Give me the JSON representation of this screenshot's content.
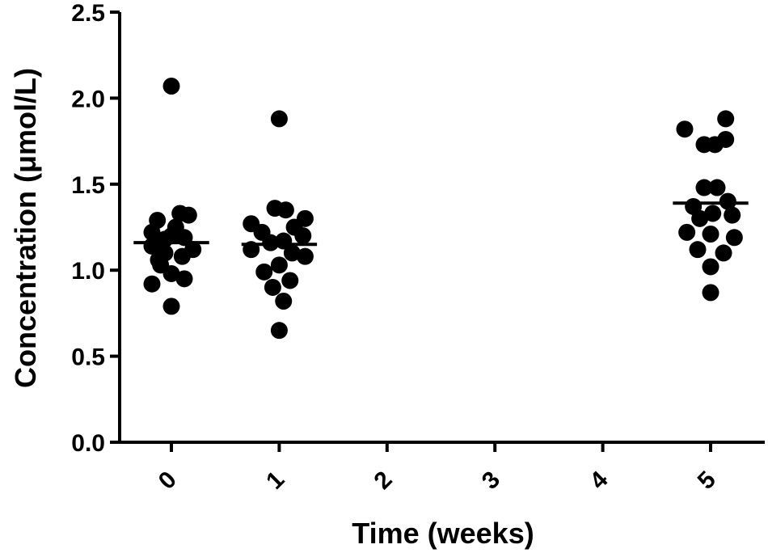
{
  "chart_data": {
    "type": "scatter",
    "xlabel": "Time (weeks)",
    "ylabel": "Concentration  (μmol/L)",
    "x_ticks": [
      "0",
      "1",
      "2",
      "3",
      "4",
      "5"
    ],
    "y_ticks": [
      "0.0",
      "0.5",
      "1.0",
      "1.5",
      "2.0",
      "2.5"
    ],
    "xlim": [
      -0.5,
      5.5
    ],
    "ylim": [
      0,
      2.5
    ],
    "grid": false,
    "point_color": "#000000",
    "groups": [
      {
        "x": 0,
        "mean": 1.16,
        "values": [
          2.07,
          1.33,
          1.32,
          1.29,
          1.25,
          1.22,
          1.2,
          1.19,
          1.18,
          1.14,
          1.12,
          1.1,
          1.08,
          1.06,
          1.03,
          0.98,
          0.95,
          0.92,
          0.79
        ],
        "offsets": [
          0.0,
          0.08,
          0.16,
          -0.13,
          0.04,
          -0.18,
          0.0,
          0.12,
          -0.06,
          -0.18,
          0.2,
          -0.06,
          0.1,
          -0.12,
          -0.1,
          0.0,
          0.12,
          -0.18,
          0.0
        ]
      },
      {
        "x": 1,
        "mean": 1.15,
        "values": [
          1.88,
          1.36,
          1.35,
          1.3,
          1.27,
          1.25,
          1.22,
          1.2,
          1.17,
          1.16,
          1.12,
          1.1,
          1.08,
          1.03,
          0.99,
          0.94,
          0.9,
          0.82,
          0.65
        ],
        "offsets": [
          0.0,
          -0.04,
          0.06,
          0.24,
          -0.26,
          0.14,
          -0.16,
          0.22,
          0.04,
          -0.08,
          -0.26,
          0.12,
          0.24,
          0.0,
          -0.14,
          0.1,
          -0.06,
          0.04,
          0.0
        ]
      },
      {
        "x": 5,
        "mean": 1.39,
        "values": [
          1.88,
          1.82,
          1.76,
          1.73,
          1.73,
          1.48,
          1.48,
          1.4,
          1.37,
          1.33,
          1.32,
          1.3,
          1.22,
          1.21,
          1.19,
          1.12,
          1.1,
          1.02,
          0.87
        ],
        "offsets": [
          0.14,
          -0.24,
          0.14,
          -0.06,
          0.04,
          0.06,
          -0.06,
          0.16,
          -0.16,
          0.02,
          0.2,
          -0.1,
          -0.22,
          0.0,
          0.22,
          -0.12,
          0.12,
          0.0,
          0.0
        ]
      }
    ]
  }
}
